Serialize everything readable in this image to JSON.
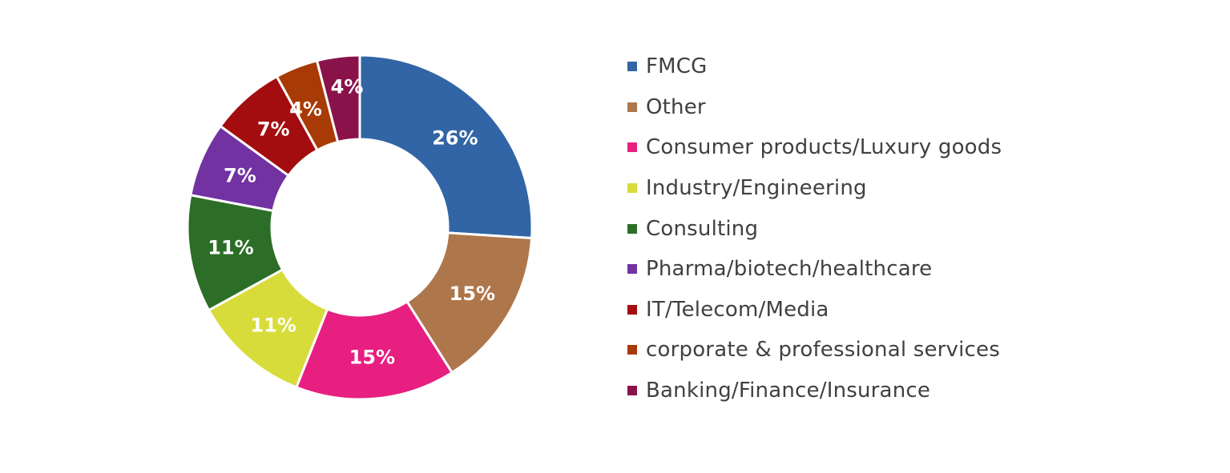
{
  "chart_data": {
    "type": "pie",
    "variant": "donut",
    "legend_position": "right",
    "slices": [
      {
        "label": "FMCG",
        "value": 26,
        "display": "26%",
        "color": "#3165A5"
      },
      {
        "label": "Other",
        "value": 15,
        "display": "15%",
        "color": "#AE764B"
      },
      {
        "label": "Consumer products/Luxury goods",
        "value": 15,
        "display": "15%",
        "color": "#E71F80"
      },
      {
        "label": "Industry/Engineering",
        "value": 11,
        "display": "11%",
        "color": "#D7DC3B"
      },
      {
        "label": "Consulting",
        "value": 11,
        "display": "11%",
        "color": "#2C6E27"
      },
      {
        "label": "Pharma/biotech/healthcare",
        "value": 7,
        "display": "7%",
        "color": "#7232A2"
      },
      {
        "label": "IT/Telecom/Media",
        "value": 7,
        "display": "7%",
        "color": "#A30D0F"
      },
      {
        "label": "corporate & professional services",
        "value": 4,
        "display": "4%",
        "color": "#A83B05"
      },
      {
        "label": "Banking/Finance/Insurance",
        "value": 4,
        "display": "4%",
        "color": "#8A124A"
      }
    ]
  }
}
